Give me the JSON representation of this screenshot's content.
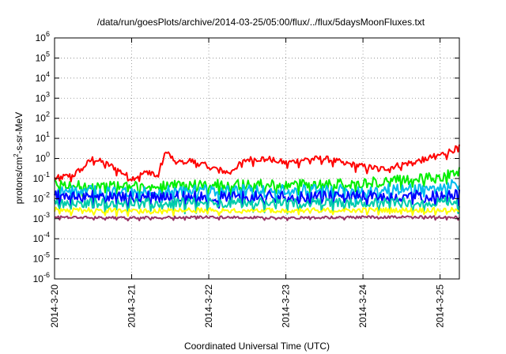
{
  "chart_data": {
    "type": "line",
    "title": "/data/run/goesPlots/archive/2014-03-25/05:00/flux/../flux/5daysMoonFluxes.txt",
    "xlabel": "Coordinated Universal Time (UTC)",
    "ylabel_parts": [
      "protons/cm",
      "2",
      "-s-sr-MeV"
    ],
    "y_scale": "log",
    "ylim": [
      1e-06,
      1000000.0
    ],
    "y_ticks": [
      {
        "value": 1e-06,
        "base": "10",
        "exp": "-6"
      },
      {
        "value": 1e-05,
        "base": "10",
        "exp": "-5"
      },
      {
        "value": 0.0001,
        "base": "10",
        "exp": "-4"
      },
      {
        "value": 0.001,
        "base": "10",
        "exp": "-3"
      },
      {
        "value": 0.01,
        "base": "10",
        "exp": "-2"
      },
      {
        "value": 0.1,
        "base": "10",
        "exp": "-1"
      },
      {
        "value": 1.0,
        "base": "10",
        "exp": "0"
      },
      {
        "value": 10.0,
        "base": "10",
        "exp": "1"
      },
      {
        "value": 100.0,
        "base": "10",
        "exp": "2"
      },
      {
        "value": 1000.0,
        "base": "10",
        "exp": "3"
      },
      {
        "value": 10000.0,
        "base": "10",
        "exp": "4"
      },
      {
        "value": 100000.0,
        "base": "10",
        "exp": "5"
      },
      {
        "value": 1000000.0,
        "base": "10",
        "exp": "6"
      }
    ],
    "xlim": [
      "2014-03-20 00:00",
      "2014-03-25 06:00"
    ],
    "x_ticks": [
      {
        "value": "2014-03-20 00:00",
        "label": "2014-3-20"
      },
      {
        "value": "2014-03-21 00:00",
        "label": "2014-3-21"
      },
      {
        "value": "2014-03-22 00:00",
        "label": "2014-3-22"
      },
      {
        "value": "2014-03-23 00:00",
        "label": "2014-3-23"
      },
      {
        "value": "2014-03-24 00:00",
        "label": "2014-3-24"
      },
      {
        "value": "2014-03-25 00:00",
        "label": "2014-3-25"
      }
    ],
    "grid": true,
    "legend": "none",
    "series": [
      {
        "color": "#ff0000",
        "x": [
          "2014-03-20 00:00",
          "2014-03-20 06:00",
          "2014-03-20 12:00",
          "2014-03-20 18:00",
          "2014-03-21 00:00",
          "2014-03-21 06:00",
          "2014-03-21 08:00",
          "2014-03-21 10:00",
          "2014-03-21 11:00",
          "2014-03-21 14:00",
          "2014-03-21 18:00",
          "2014-03-22 00:00",
          "2014-03-22 06:00",
          "2014-03-22 12:00",
          "2014-03-22 18:00",
          "2014-03-23 00:00",
          "2014-03-23 06:00",
          "2014-03-23 12:00",
          "2014-03-23 18:00",
          "2014-03-24 00:00",
          "2014-03-24 06:00",
          "2014-03-24 12:00",
          "2014-03-24 18:00",
          "2014-03-25 00:00",
          "2014-03-25 06:00"
        ],
        "values": [
          0.1,
          0.15,
          1.0,
          0.4,
          0.1,
          0.25,
          0.1,
          1.5,
          2.0,
          0.6,
          0.8,
          0.4,
          0.2,
          0.9,
          1.0,
          0.6,
          0.9,
          1.0,
          0.6,
          0.4,
          0.3,
          0.5,
          0.8,
          1.5,
          3.5
        ],
        "noise": 0.15
      },
      {
        "color": "#00ee00",
        "x": [
          "2014-03-20 00:00",
          "2014-03-21 00:00",
          "2014-03-22 00:00",
          "2014-03-23 00:00",
          "2014-03-24 00:00",
          "2014-03-25 00:00",
          "2014-03-25 06:00"
        ],
        "values": [
          0.05,
          0.04,
          0.05,
          0.05,
          0.06,
          0.12,
          0.22
        ],
        "noise": 0.25
      },
      {
        "color": "#00bbee",
        "x": [
          "2014-03-20 00:00",
          "2014-03-21 00:00",
          "2014-03-22 00:00",
          "2014-03-23 00:00",
          "2014-03-24 00:00",
          "2014-03-25 00:00",
          "2014-03-25 06:00"
        ],
        "values": [
          0.025,
          0.02,
          0.025,
          0.025,
          0.025,
          0.035,
          0.05
        ],
        "noise": 0.3
      },
      {
        "color": "#0000ff",
        "x": [
          "2014-03-20 00:00",
          "2014-03-21 00:00",
          "2014-03-22 00:00",
          "2014-03-23 00:00",
          "2014-03-24 00:00",
          "2014-03-25 00:00",
          "2014-03-25 06:00"
        ],
        "values": [
          0.014,
          0.012,
          0.013,
          0.013,
          0.013,
          0.014,
          0.015
        ],
        "noise": 0.28
      },
      {
        "color": "#00ccaa",
        "x": [
          "2014-03-20 00:00",
          "2014-03-21 00:00",
          "2014-03-22 00:00",
          "2014-03-23 00:00",
          "2014-03-24 00:00",
          "2014-03-25 00:00",
          "2014-03-25 06:00"
        ],
        "values": [
          0.006,
          0.006,
          0.0065,
          0.006,
          0.006,
          0.007,
          0.007
        ],
        "noise": 0.25
      },
      {
        "color": "#ffff00",
        "x": [
          "2014-03-20 00:00",
          "2014-03-21 00:00",
          "2014-03-22 00:00",
          "2014-03-23 00:00",
          "2014-03-24 00:00",
          "2014-03-25 00:00",
          "2014-03-25 06:00"
        ],
        "values": [
          0.0028,
          0.0025,
          0.0027,
          0.0026,
          0.0027,
          0.0027,
          0.0027
        ],
        "noise": 0.12
      },
      {
        "color": "#993366",
        "x": [
          "2014-03-20 00:00",
          "2014-03-21 00:00",
          "2014-03-22 00:00",
          "2014-03-23 00:00",
          "2014-03-24 00:00",
          "2014-03-25 00:00",
          "2014-03-25 06:00"
        ],
        "values": [
          0.0012,
          0.0011,
          0.0012,
          0.0011,
          0.0012,
          0.0012,
          0.0012
        ],
        "noise": 0.06
      }
    ]
  }
}
